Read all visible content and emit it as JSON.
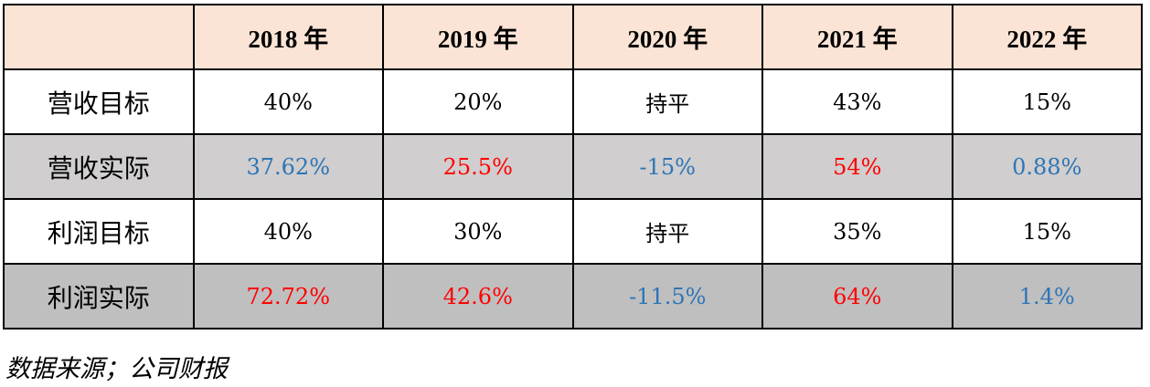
{
  "table": {
    "headers": [
      "",
      "2018 年",
      "2019 年",
      "2020 年",
      "2021 年",
      "2022 年"
    ],
    "rows": [
      {
        "label": "营收目标",
        "style": "white",
        "cells": [
          {
            "v": "40%",
            "c": "black"
          },
          {
            "v": "20%",
            "c": "black"
          },
          {
            "v": "持平",
            "c": "black"
          },
          {
            "v": "43%",
            "c": "black"
          },
          {
            "v": "15%",
            "c": "black"
          }
        ]
      },
      {
        "label": "营收实际",
        "style": "gray1",
        "cells": [
          {
            "v": "37.62%",
            "c": "blue"
          },
          {
            "v": "25.5%",
            "c": "red"
          },
          {
            "v": "-15%",
            "c": "blue"
          },
          {
            "v": "54%",
            "c": "red"
          },
          {
            "v": "0.88%",
            "c": "blue"
          }
        ]
      },
      {
        "label": "利润目标",
        "style": "white",
        "cells": [
          {
            "v": "40%",
            "c": "black"
          },
          {
            "v": "30%",
            "c": "black"
          },
          {
            "v": "持平",
            "c": "black"
          },
          {
            "v": "35%",
            "c": "black"
          },
          {
            "v": "15%",
            "c": "black"
          }
        ]
      },
      {
        "label": "利润实际",
        "style": "gray2",
        "cells": [
          {
            "v": "72.72%",
            "c": "red"
          },
          {
            "v": "42.6%",
            "c": "red"
          },
          {
            "v": "-11.5%",
            "c": "blue"
          },
          {
            "v": "64%",
            "c": "red"
          },
          {
            "v": "1.4%",
            "c": "blue"
          }
        ]
      }
    ]
  },
  "colors": {
    "header_bg": "#fbe4d5",
    "row_gray1": "#d0cece",
    "row_gray2": "#bfbfbf",
    "blue": "#2e75b6",
    "red": "#ff0000"
  },
  "caption": "数据来源；公司财报"
}
